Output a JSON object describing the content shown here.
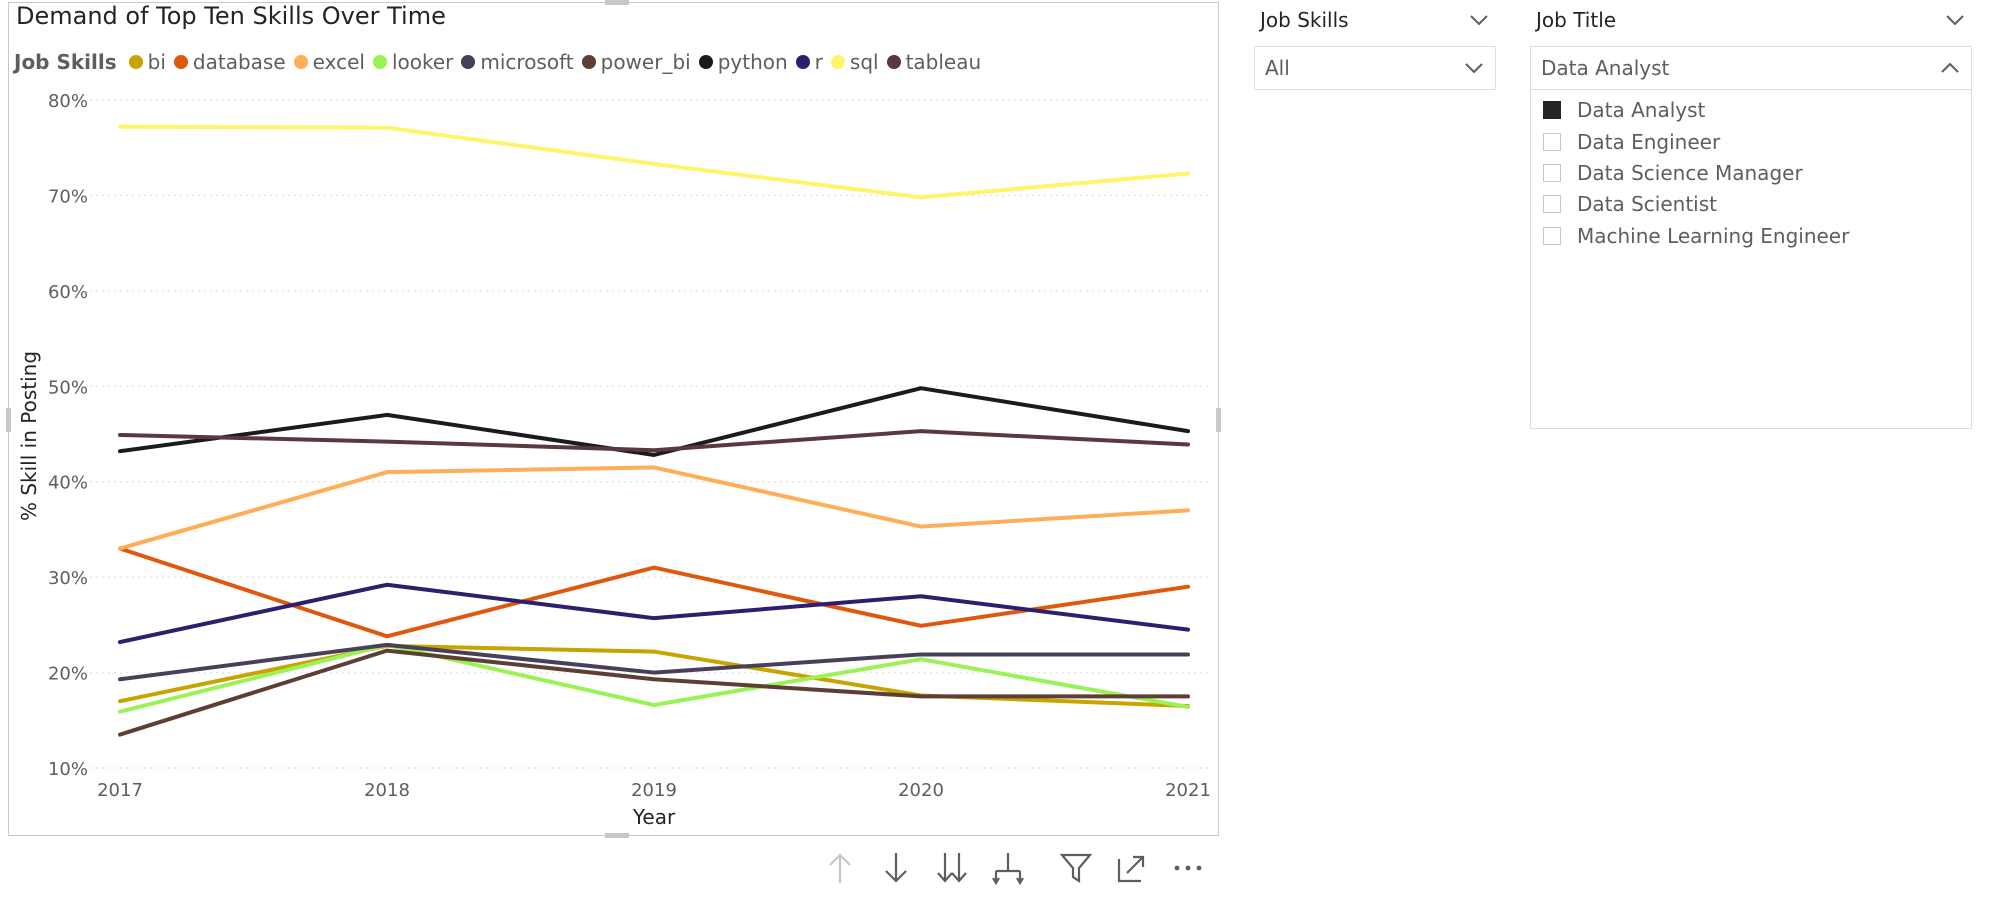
{
  "chart_data": {
    "type": "line",
    "title": "Demand of Top Ten Skills Over Time",
    "xlabel": "Year",
    "ylabel": "% Skill in Posting",
    "x": [
      "2017",
      "2018",
      "2019",
      "2020",
      "2021"
    ],
    "ylim": [
      10,
      80
    ],
    "yticks": [
      "10%",
      "20%",
      "30%",
      "40%",
      "50%",
      "60%",
      "70%",
      "80%"
    ],
    "ytick_values": [
      10,
      20,
      30,
      40,
      50,
      60,
      70,
      80
    ],
    "legend_title": "Job Skills",
    "legend_placement": "top-left",
    "grid": true,
    "series": [
      {
        "name": "bi",
        "color": "#c8a400",
        "values": [
          17.0,
          22.8,
          22.2,
          17.6,
          16.5
        ]
      },
      {
        "name": "database",
        "color": "#e0580d",
        "values": [
          33.0,
          23.8,
          31.0,
          24.9,
          29.0
        ]
      },
      {
        "name": "excel",
        "color": "#ffad56",
        "values": [
          33.0,
          41.0,
          41.5,
          35.3,
          37.0
        ]
      },
      {
        "name": "looker",
        "color": "#9bf255",
        "values": [
          15.9,
          22.9,
          16.6,
          21.4,
          16.4
        ]
      },
      {
        "name": "microsoft",
        "color": "#4a3f58",
        "values": [
          19.3,
          22.9,
          20.0,
          21.9,
          21.9
        ]
      },
      {
        "name": "power_bi",
        "color": "#5c3e33",
        "values": [
          13.5,
          22.3,
          19.3,
          17.5,
          17.5
        ]
      },
      {
        "name": "python",
        "color": "#1b1b1b",
        "values": [
          43.2,
          47.0,
          42.8,
          49.8,
          45.3
        ]
      },
      {
        "name": "r",
        "color": "#2c1f6e",
        "values": [
          23.2,
          29.2,
          25.7,
          28.0,
          24.5
        ]
      },
      {
        "name": "sql",
        "color": "#fff56b",
        "values": [
          77.2,
          77.1,
          73.3,
          69.8,
          72.3
        ]
      },
      {
        "name": "tableau",
        "color": "#5a393d",
        "values": [
          44.9,
          44.2,
          43.3,
          45.3,
          43.9
        ]
      }
    ]
  },
  "slicers": {
    "job_skills": {
      "header": "Job Skills",
      "selected": "All"
    },
    "job_title": {
      "header": "Job Title",
      "selected": "Data Analyst",
      "options": [
        {
          "label": "Data Analyst",
          "checked": true
        },
        {
          "label": "Data Engineer",
          "checked": false
        },
        {
          "label": "Data Science Manager",
          "checked": false
        },
        {
          "label": "Data Scientist",
          "checked": false
        },
        {
          "label": "Machine Learning Engineer",
          "checked": false
        }
      ]
    }
  },
  "toolbar": {
    "icons": [
      "arrow-up-icon",
      "arrow-down-icon",
      "double-arrow-down-icon",
      "expand-hierarchy-icon",
      "filter-icon",
      "focus-mode-icon",
      "more-options-icon"
    ]
  }
}
